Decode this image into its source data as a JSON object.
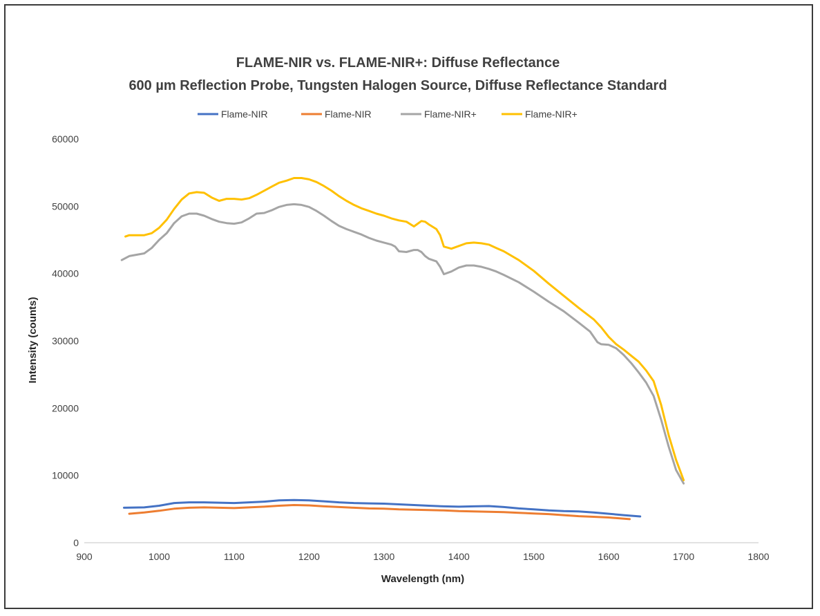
{
  "chart_data": {
    "type": "line",
    "title": "FLAME-NIR vs. FLAME-NIR+: Diffuse Reflectance",
    "subtitle": "600 µm Reflection Probe, Tungsten Halogen Source, Diffuse Reflectance Standard",
    "xlabel": "Wavelength (nm)",
    "ylabel": "Intensity (counts)",
    "xlim": [
      900,
      1800
    ],
    "ylim": [
      0,
      60000
    ],
    "x_ticks": [
      "900",
      "1000",
      "1100",
      "1200",
      "1300",
      "1400",
      "1500",
      "1600",
      "1700",
      "1800"
    ],
    "y_ticks": [
      "0",
      "10000",
      "20000",
      "30000",
      "40000",
      "50000",
      "60000"
    ],
    "grid": false,
    "legend_position": "top",
    "series": [
      {
        "name": "Flame-NIR",
        "color": "#4472c4",
        "points": [
          [
            953,
            5200
          ],
          [
            980,
            5250
          ],
          [
            1000,
            5500
          ],
          [
            1020,
            5900
          ],
          [
            1040,
            6000
          ],
          [
            1060,
            6000
          ],
          [
            1080,
            5950
          ],
          [
            1100,
            5900
          ],
          [
            1120,
            6000
          ],
          [
            1140,
            6100
          ],
          [
            1160,
            6300
          ],
          [
            1180,
            6350
          ],
          [
            1200,
            6300
          ],
          [
            1220,
            6150
          ],
          [
            1240,
            6000
          ],
          [
            1260,
            5900
          ],
          [
            1280,
            5850
          ],
          [
            1300,
            5800
          ],
          [
            1320,
            5700
          ],
          [
            1340,
            5600
          ],
          [
            1360,
            5500
          ],
          [
            1380,
            5400
          ],
          [
            1400,
            5350
          ],
          [
            1420,
            5400
          ],
          [
            1440,
            5450
          ],
          [
            1460,
            5300
          ],
          [
            1480,
            5100
          ],
          [
            1500,
            4950
          ],
          [
            1520,
            4800
          ],
          [
            1540,
            4700
          ],
          [
            1560,
            4650
          ],
          [
            1580,
            4500
          ],
          [
            1600,
            4300
          ],
          [
            1620,
            4100
          ],
          [
            1642,
            3900
          ]
        ]
      },
      {
        "name": "Flame-NIR",
        "color": "#ed7d31",
        "points": [
          [
            960,
            4300
          ],
          [
            980,
            4500
          ],
          [
            1000,
            4750
          ],
          [
            1020,
            5050
          ],
          [
            1040,
            5200
          ],
          [
            1060,
            5250
          ],
          [
            1080,
            5200
          ],
          [
            1100,
            5150
          ],
          [
            1120,
            5250
          ],
          [
            1140,
            5350
          ],
          [
            1160,
            5500
          ],
          [
            1180,
            5600
          ],
          [
            1200,
            5550
          ],
          [
            1220,
            5400
          ],
          [
            1240,
            5300
          ],
          [
            1260,
            5200
          ],
          [
            1280,
            5100
          ],
          [
            1300,
            5050
          ],
          [
            1320,
            4950
          ],
          [
            1340,
            4900
          ],
          [
            1360,
            4850
          ],
          [
            1380,
            4800
          ],
          [
            1400,
            4700
          ],
          [
            1420,
            4650
          ],
          [
            1440,
            4600
          ],
          [
            1460,
            4550
          ],
          [
            1480,
            4450
          ],
          [
            1500,
            4350
          ],
          [
            1520,
            4250
          ],
          [
            1540,
            4100
          ],
          [
            1560,
            3950
          ],
          [
            1580,
            3850
          ],
          [
            1600,
            3750
          ],
          [
            1628,
            3500
          ]
        ]
      },
      {
        "name": "Flame-NIR+",
        "color": "#a5a5a5",
        "points": [
          [
            950,
            42000
          ],
          [
            960,
            42600
          ],
          [
            980,
            43000
          ],
          [
            990,
            43800
          ],
          [
            1000,
            45000
          ],
          [
            1010,
            46000
          ],
          [
            1020,
            47500
          ],
          [
            1030,
            48500
          ],
          [
            1040,
            48900
          ],
          [
            1050,
            48900
          ],
          [
            1060,
            48600
          ],
          [
            1070,
            48100
          ],
          [
            1080,
            47700
          ],
          [
            1090,
            47500
          ],
          [
            1100,
            47400
          ],
          [
            1110,
            47600
          ],
          [
            1120,
            48200
          ],
          [
            1130,
            48900
          ],
          [
            1140,
            49000
          ],
          [
            1150,
            49400
          ],
          [
            1160,
            49900
          ],
          [
            1170,
            50200
          ],
          [
            1180,
            50300
          ],
          [
            1190,
            50200
          ],
          [
            1200,
            49900
          ],
          [
            1210,
            49300
          ],
          [
            1220,
            48600
          ],
          [
            1230,
            47800
          ],
          [
            1240,
            47100
          ],
          [
            1250,
            46600
          ],
          [
            1260,
            46200
          ],
          [
            1270,
            45800
          ],
          [
            1280,
            45300
          ],
          [
            1290,
            44900
          ],
          [
            1300,
            44600
          ],
          [
            1310,
            44300
          ],
          [
            1315,
            44000
          ],
          [
            1320,
            43300
          ],
          [
            1330,
            43200
          ],
          [
            1340,
            43500
          ],
          [
            1345,
            43500
          ],
          [
            1350,
            43200
          ],
          [
            1355,
            42600
          ],
          [
            1360,
            42200
          ],
          [
            1370,
            41800
          ],
          [
            1375,
            41000
          ],
          [
            1380,
            39900
          ],
          [
            1390,
            40300
          ],
          [
            1400,
            40900
          ],
          [
            1410,
            41200
          ],
          [
            1420,
            41200
          ],
          [
            1430,
            41000
          ],
          [
            1440,
            40700
          ],
          [
            1450,
            40300
          ],
          [
            1460,
            39800
          ],
          [
            1480,
            38700
          ],
          [
            1500,
            37300
          ],
          [
            1520,
            35800
          ],
          [
            1540,
            34400
          ],
          [
            1560,
            32700
          ],
          [
            1575,
            31400
          ],
          [
            1585,
            29800
          ],
          [
            1590,
            29500
          ],
          [
            1600,
            29400
          ],
          [
            1610,
            28900
          ],
          [
            1620,
            27900
          ],
          [
            1630,
            26700
          ],
          [
            1640,
            25300
          ],
          [
            1650,
            23800
          ],
          [
            1660,
            21800
          ],
          [
            1670,
            18300
          ],
          [
            1680,
            14300
          ],
          [
            1690,
            10800
          ],
          [
            1700,
            8800
          ]
        ]
      },
      {
        "name": "Flame-NIR+",
        "color": "#ffc000",
        "points": [
          [
            955,
            45500
          ],
          [
            960,
            45700
          ],
          [
            980,
            45700
          ],
          [
            990,
            46000
          ],
          [
            1000,
            46800
          ],
          [
            1010,
            48000
          ],
          [
            1020,
            49600
          ],
          [
            1030,
            51000
          ],
          [
            1040,
            51900
          ],
          [
            1050,
            52100
          ],
          [
            1060,
            52000
          ],
          [
            1070,
            51300
          ],
          [
            1080,
            50800
          ],
          [
            1090,
            51100
          ],
          [
            1100,
            51100
          ],
          [
            1110,
            51000
          ],
          [
            1120,
            51200
          ],
          [
            1130,
            51700
          ],
          [
            1140,
            52300
          ],
          [
            1150,
            52900
          ],
          [
            1160,
            53500
          ],
          [
            1170,
            53800
          ],
          [
            1180,
            54200
          ],
          [
            1190,
            54200
          ],
          [
            1200,
            54000
          ],
          [
            1210,
            53600
          ],
          [
            1220,
            53000
          ],
          [
            1230,
            52300
          ],
          [
            1240,
            51500
          ],
          [
            1250,
            50800
          ],
          [
            1260,
            50200
          ],
          [
            1270,
            49700
          ],
          [
            1280,
            49300
          ],
          [
            1290,
            48900
          ],
          [
            1300,
            48600
          ],
          [
            1310,
            48200
          ],
          [
            1320,
            47900
          ],
          [
            1330,
            47700
          ],
          [
            1340,
            47000
          ],
          [
            1345,
            47400
          ],
          [
            1350,
            47800
          ],
          [
            1355,
            47700
          ],
          [
            1360,
            47300
          ],
          [
            1370,
            46600
          ],
          [
            1375,
            45700
          ],
          [
            1380,
            44000
          ],
          [
            1390,
            43700
          ],
          [
            1400,
            44100
          ],
          [
            1410,
            44500
          ],
          [
            1420,
            44600
          ],
          [
            1430,
            44500
          ],
          [
            1440,
            44300
          ],
          [
            1450,
            43800
          ],
          [
            1460,
            43300
          ],
          [
            1480,
            42000
          ],
          [
            1500,
            40400
          ],
          [
            1520,
            38500
          ],
          [
            1540,
            36700
          ],
          [
            1560,
            34900
          ],
          [
            1580,
            33200
          ],
          [
            1590,
            32000
          ],
          [
            1600,
            30600
          ],
          [
            1610,
            29500
          ],
          [
            1620,
            28700
          ],
          [
            1630,
            27800
          ],
          [
            1640,
            26900
          ],
          [
            1650,
            25600
          ],
          [
            1660,
            24000
          ],
          [
            1670,
            20500
          ],
          [
            1680,
            16000
          ],
          [
            1690,
            12300
          ],
          [
            1700,
            9300
          ]
        ]
      }
    ]
  }
}
